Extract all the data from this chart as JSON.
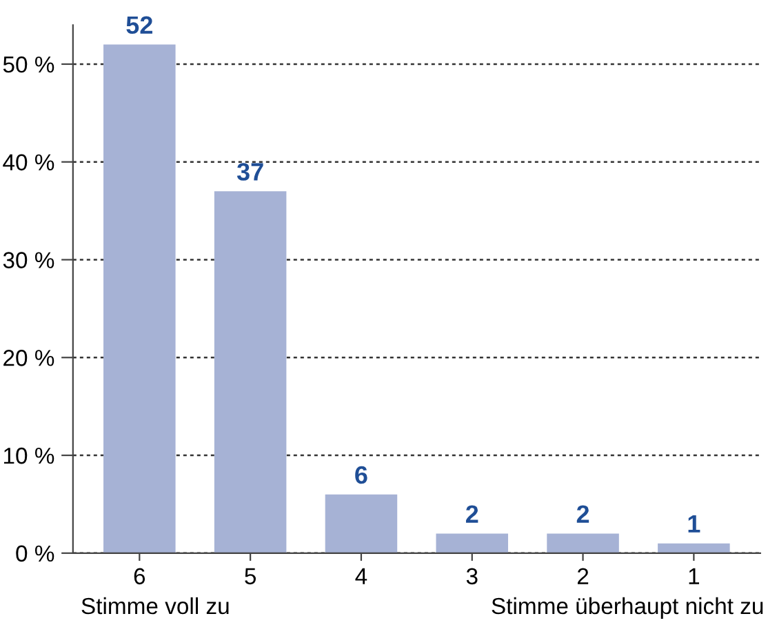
{
  "chart_data": {
    "type": "bar",
    "categories": [
      "6",
      "5",
      "4",
      "3",
      "2",
      "1"
    ],
    "values": [
      52,
      37,
      6,
      2,
      2,
      1
    ],
    "color": "#a6b2d5",
    "ylim": [
      0,
      54
    ],
    "yticks": [
      {
        "value": 0,
        "label": "0 %"
      },
      {
        "value": 10,
        "label": "10 %"
      },
      {
        "value": 20,
        "label": "20 %"
      },
      {
        "value": 30,
        "label": "30 %"
      },
      {
        "value": 40,
        "label": "40 %"
      },
      {
        "value": 50,
        "label": "50 %"
      }
    ],
    "grid": "y",
    "data_labels": true,
    "annotations": [
      "Stimme voll zu",
      "Stimme überhaupt nicht zu"
    ]
  }
}
